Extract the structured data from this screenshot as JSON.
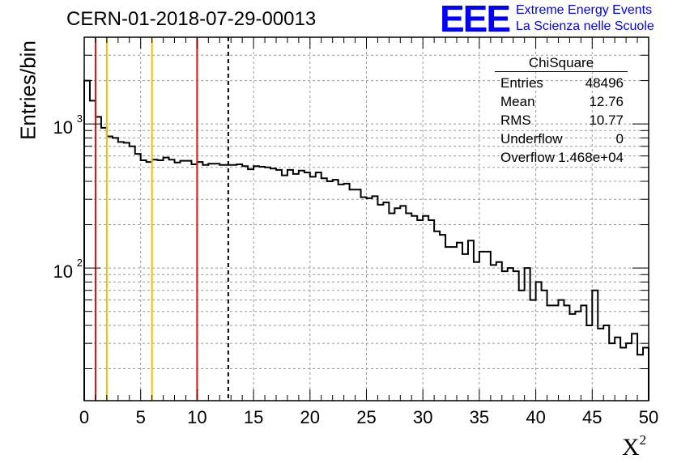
{
  "header": {
    "title": "CERN-01-2018-07-29-00013",
    "logo_text": "EEE",
    "logo_line1": "Extreme Energy Events",
    "logo_line2": "La Scienza nelle Scuole"
  },
  "stats": {
    "title": "ChiSquare",
    "rows": [
      {
        "label": "Entries",
        "value": "48496"
      },
      {
        "label": "Mean",
        "value": "12.76"
      },
      {
        "label": "RMS",
        "value": "10.77"
      },
      {
        "label": "Underflow",
        "value": "0"
      },
      {
        "label": "Overflow",
        "value": "1.468e+04"
      }
    ]
  },
  "colors": {
    "histogram": "#000000",
    "red_line": "#dd1111",
    "yellow_line": "#f5c000",
    "grid": "#999999",
    "logo": "#0000ff"
  },
  "chart_data": {
    "type": "histogram",
    "title": "CERN-01-2018-07-29-00013",
    "xlabel": "X",
    "xlabel_sup": "2",
    "ylabel": "Entries/bin",
    "xlim": [
      0,
      50
    ],
    "ylim": [
      12,
      4000
    ],
    "yscale": "log",
    "bin_width": 0.5,
    "grid": true,
    "x_ticks": [
      "0",
      "5",
      "10",
      "15",
      "20",
      "25",
      "30",
      "35",
      "40",
      "45",
      "50"
    ],
    "y_ticks": [
      {
        "base": "10",
        "exp": "2",
        "value": 100
      },
      {
        "base": "10",
        "exp": "3",
        "value": 1000
      }
    ],
    "values": [
      2000,
      1450,
      1120,
      940,
      820,
      800,
      750,
      740,
      700,
      620,
      560,
      545,
      565,
      560,
      585,
      565,
      540,
      555,
      555,
      525,
      545,
      520,
      530,
      530,
      520,
      520,
      520,
      525,
      510,
      485,
      510,
      505,
      500,
      490,
      480,
      440,
      480,
      450,
      475,
      460,
      430,
      460,
      420,
      400,
      410,
      380,
      385,
      350,
      350,
      310,
      305,
      315,
      275,
      285,
      240,
      260,
      270,
      240,
      230,
      215,
      230,
      215,
      180,
      170,
      140,
      140,
      150,
      125,
      155,
      110,
      130,
      130,
      105,
      110,
      95,
      100,
      95,
      70,
      100,
      60,
      80,
      70,
      55,
      55,
      60,
      55,
      48,
      50,
      55,
      40,
      70,
      38,
      40,
      30,
      33,
      28,
      30,
      35,
      25,
      28
    ],
    "vertical_lines": [
      {
        "x": 1,
        "color": "red",
        "style": "solid"
      },
      {
        "x": 2,
        "color": "yellow",
        "style": "solid"
      },
      {
        "x": 6,
        "color": "yellow",
        "style": "solid"
      },
      {
        "x": 10,
        "color": "red",
        "style": "solid"
      },
      {
        "x": 12.76,
        "color": "black",
        "style": "dashed"
      }
    ],
    "legend_position": "top-right"
  }
}
